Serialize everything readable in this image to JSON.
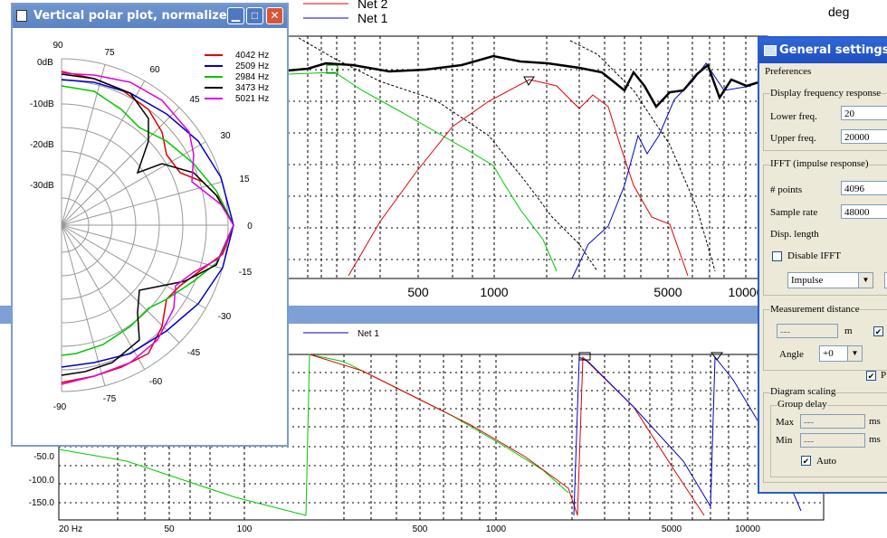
{
  "background": {
    "top_legend": [
      "Net 2",
      "Net 1"
    ],
    "deg_label": "deg",
    "top_x_ticks": [
      "500",
      "1000",
      "5000",
      "10000"
    ],
    "bottom_legend": "Net 1",
    "bottom_y_ticks": [
      "-50.0",
      "-100.0",
      "-150.0"
    ],
    "bottom_x_ticks": [
      "20 Hz",
      "50",
      "100",
      "500",
      "1000",
      "5000",
      "10000"
    ]
  },
  "polar_window": {
    "title": "Vertical polar plot, normalized",
    "angle_labels": [
      "90",
      "75",
      "60",
      "45",
      "30",
      "15",
      "0",
      "-15",
      "-30",
      "-45",
      "-60",
      "-75",
      "-90"
    ],
    "db_labels": [
      "0dB",
      "-10dB",
      "-20dB",
      "-30dB"
    ],
    "legend": [
      {
        "label": "4042 Hz",
        "color": "#e00000"
      },
      {
        "label": "2509 Hz",
        "color": "#0000c8"
      },
      {
        "label": "2984 Hz",
        "color": "#00c800"
      },
      {
        "label": "3473 Hz",
        "color": "#000000"
      },
      {
        "label": "5021 Hz",
        "color": "#e000e0"
      }
    ]
  },
  "settings": {
    "title": "General settings",
    "tab": "Preferences",
    "display_group": "Display frequency response",
    "lower_freq_label": "Lower freq.",
    "lower_freq_value": "20",
    "upper_freq_label": "Upper freq.",
    "upper_freq_value": "20000",
    "ifft_group": "IFFT (impulse response)",
    "points_label": "# points",
    "points_value": "4096",
    "sample_rate_label": "Sample rate",
    "sample_rate_value": "48000",
    "disp_length_label": "Disp. length",
    "disable_ifft_label": "Disable IFFT",
    "impulse_value": "Impulse",
    "meas_group": "Measurement distance",
    "distance_value": "---",
    "distance_unit": "m",
    "angle_label": "Angle",
    "angle_value": "+0",
    "p_check_label": "P",
    "diagram_group": "Diagram scaling",
    "group_delay_group": "Group delay",
    "max_label": "Max",
    "max_value": "---",
    "min_label": "Min",
    "min_value": "---",
    "ms_unit": "ms",
    "auto_label": "Auto"
  }
}
